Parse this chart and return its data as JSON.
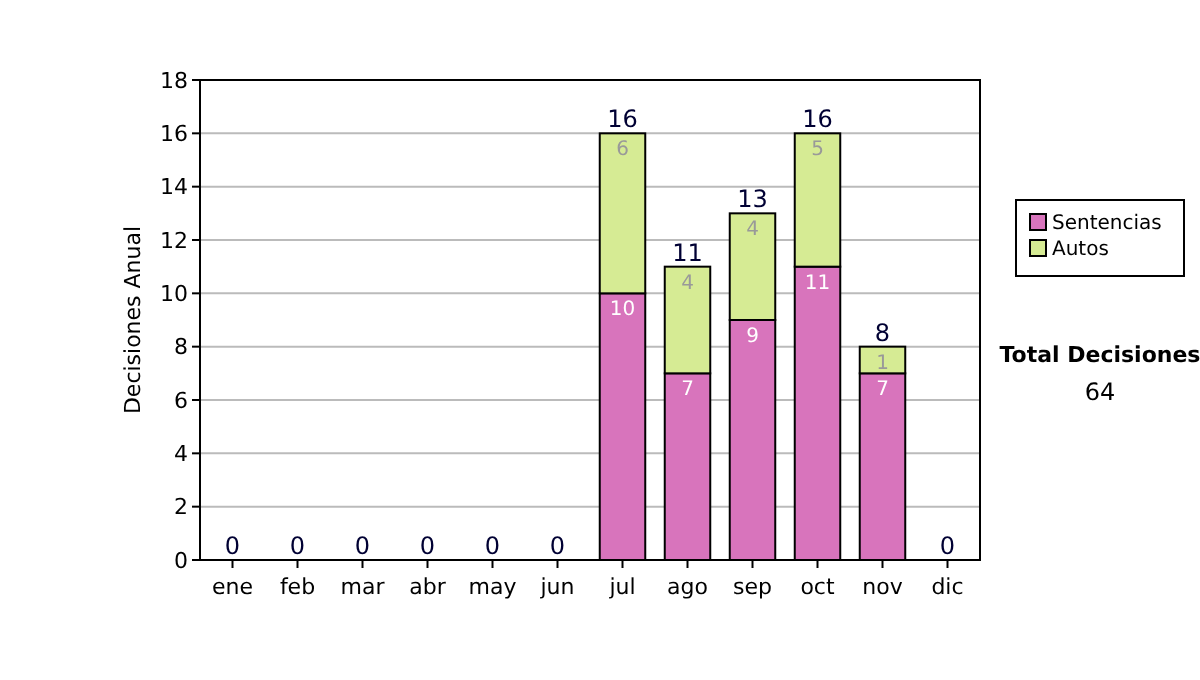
{
  "chart_data": {
    "type": "bar",
    "stacked": true,
    "ylabel": "Decisiones Anual",
    "categories": [
      "ene",
      "feb",
      "mar",
      "abr",
      "may",
      "jun",
      "jul",
      "ago",
      "sep",
      "oct",
      "nov",
      "dic"
    ],
    "series": [
      {
        "name": "Sentencias",
        "color": "#d874bc",
        "values": [
          0,
          0,
          0,
          0,
          0,
          0,
          10,
          7,
          9,
          11,
          7,
          0
        ],
        "value_labels": [
          null,
          null,
          null,
          null,
          null,
          null,
          "10",
          "7",
          "9",
          "11",
          "7",
          null
        ]
      },
      {
        "name": "Autos",
        "color": "#d6eb94",
        "values": [
          0,
          0,
          0,
          0,
          0,
          0,
          6,
          4,
          4,
          5,
          1,
          0
        ],
        "value_labels": [
          null,
          null,
          null,
          null,
          null,
          null,
          "6",
          "4",
          "4",
          "5",
          "1",
          null
        ]
      }
    ],
    "totals": [
      "0",
      "0",
      "0",
      "0",
      "0",
      "0",
      "16",
      "11",
      "13",
      "16",
      "8",
      "0"
    ],
    "ylim": [
      0,
      18
    ],
    "yticks": [
      0,
      2,
      4,
      6,
      8,
      10,
      12,
      14,
      16,
      18
    ],
    "grid": "y",
    "legend": "right",
    "annotations": [
      "Total Decisiones",
      "64"
    ]
  }
}
